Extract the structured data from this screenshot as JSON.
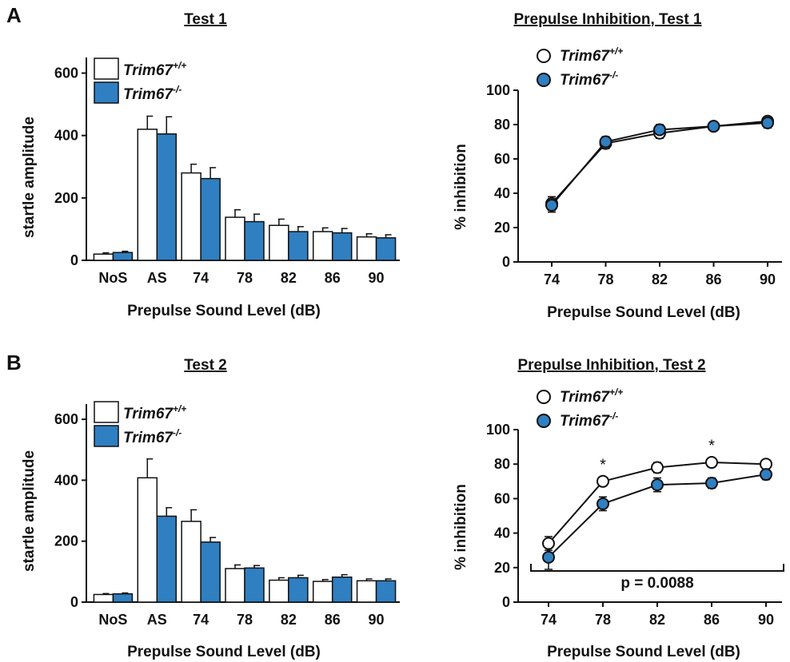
{
  "panels": [
    {
      "letter": "A"
    },
    {
      "letter": "B"
    }
  ],
  "colors": {
    "wildtype_fill": "#ffffff",
    "knockout_fill": "#2f7fc1",
    "stroke": "#111111"
  },
  "chart_data": [
    {
      "type": "bar",
      "title": "Test 1",
      "xlabel": "Prepulse Sound Level (dB)",
      "ylabel": "startle amplitude",
      "ylim": [
        0,
        650
      ],
      "yticks": [
        0,
        200,
        400,
        600
      ],
      "categories": [
        "NoS",
        "AS",
        "74",
        "78",
        "82",
        "86",
        "90"
      ],
      "legend_position": "top-left",
      "series": [
        {
          "name": "Trim67",
          "superscript": "+/+",
          "values": [
            20,
            420,
            280,
            138,
            112,
            92,
            75
          ],
          "errors": [
            4,
            42,
            28,
            24,
            20,
            12,
            10
          ]
        },
        {
          "name": "Trim67",
          "superscript": "-/-",
          "values": [
            25,
            405,
            262,
            124,
            92,
            88,
            72
          ],
          "errors": [
            4,
            55,
            35,
            24,
            16,
            14,
            10
          ]
        }
      ]
    },
    {
      "type": "line",
      "title": "Prepulse Inhibition, Test 1",
      "xlabel": "Prepulse Sound Level (dB)",
      "ylabel": "% inhibition",
      "ylim": [
        0,
        100
      ],
      "yticks": [
        0,
        20,
        40,
        60,
        80,
        100
      ],
      "x": [
        "74",
        "78",
        "82",
        "86",
        "90"
      ],
      "legend_position": "top",
      "series": [
        {
          "name": "Trim67",
          "superscript": "+/+",
          "values": [
            34,
            69,
            75,
            79,
            82
          ],
          "errors": [
            4,
            3,
            3,
            2,
            2
          ]
        },
        {
          "name": "Trim67",
          "superscript": "-/-",
          "values": [
            33,
            70,
            77,
            79,
            81
          ],
          "errors": [
            4,
            3,
            3,
            2,
            3
          ]
        }
      ]
    },
    {
      "type": "bar",
      "title": "Test 2",
      "xlabel": "Prepulse Sound Level (dB)",
      "ylabel": "startle amplitude",
      "ylim": [
        0,
        650
      ],
      "yticks": [
        0,
        200,
        400,
        600
      ],
      "categories": [
        "NoS",
        "AS",
        "74",
        "78",
        "82",
        "86",
        "90"
      ],
      "legend_position": "top-left",
      "series": [
        {
          "name": "Trim67",
          "superscript": "+/+",
          "values": [
            25,
            408,
            265,
            110,
            72,
            68,
            70
          ],
          "errors": [
            3,
            62,
            38,
            12,
            8,
            6,
            6
          ]
        },
        {
          "name": "Trim67",
          "superscript": "-/-",
          "values": [
            27,
            282,
            197,
            112,
            80,
            82,
            70
          ],
          "errors": [
            3,
            28,
            15,
            8,
            8,
            8,
            6
          ]
        }
      ]
    },
    {
      "type": "line",
      "title": "Prepulse Inhibition, Test 2",
      "xlabel": "Prepulse Sound Level (dB)",
      "ylabel": "% inhibition",
      "ylim": [
        0,
        100
      ],
      "yticks": [
        0,
        20,
        40,
        60,
        80,
        100
      ],
      "x": [
        "74",
        "78",
        "82",
        "86",
        "90"
      ],
      "legend_position": "top",
      "series": [
        {
          "name": "Trim67",
          "superscript": "+/+",
          "values": [
            34,
            70,
            78,
            81,
            80
          ],
          "errors": [
            4,
            2,
            3,
            2,
            2
          ]
        },
        {
          "name": "Trim67",
          "superscript": "-/-",
          "values": [
            26,
            57,
            68,
            69,
            74
          ],
          "errors": [
            7,
            4,
            4,
            3,
            3
          ]
        }
      ],
      "annotations": [
        {
          "text": "*",
          "x": "78"
        },
        {
          "text": "*",
          "x": "86"
        },
        {
          "text": "p = 0.0088",
          "type": "bracket",
          "from": "74",
          "to": "90"
        }
      ]
    }
  ]
}
